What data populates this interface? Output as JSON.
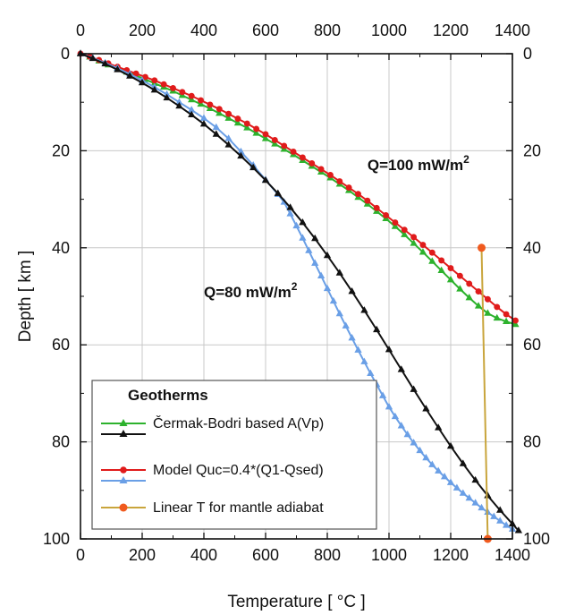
{
  "chart_data": {
    "type": "line",
    "xlabel": "Temperature  [ °C ]",
    "ylabel": "Depth  [ km ]",
    "xlim": [
      0,
      1400
    ],
    "ylim": [
      0,
      100
    ],
    "y_inverted": true,
    "x_ticks": [
      "0",
      "200",
      "400",
      "600",
      "800",
      "1000",
      "1200",
      "1400"
    ],
    "y_ticks": [
      "0",
      "20",
      "40",
      "60",
      "80",
      "100"
    ],
    "grid": true,
    "legend_title": "Geotherms",
    "legend_position": "bottom-left",
    "annotations": [
      {
        "text": "Q=100 mW/m",
        "sup": "2",
        "x": 930,
        "y": 24
      },
      {
        "text": "Q=80 mW/m",
        "sup": "2",
        "x": 400,
        "y": 48
      }
    ],
    "series": [
      {
        "name": "Čermak-Bodri based A(Vp)",
        "color": "#2db22d",
        "marker": "triangle",
        "x": [
          0,
          30,
          60,
          90,
          120,
          150,
          180,
          210,
          240,
          270,
          300,
          330,
          360,
          390,
          420,
          450,
          480,
          510,
          540,
          570,
          600,
          630,
          660,
          690,
          720,
          750,
          780,
          810,
          840,
          870,
          900,
          930,
          960,
          990,
          1020,
          1050,
          1080,
          1110,
          1140,
          1170,
          1200,
          1230,
          1260,
          1290,
          1320,
          1350,
          1380,
          1410
        ],
        "y": [
          0,
          0.7,
          1.5,
          2.3,
          3.0,
          3.8,
          4.5,
          5.3,
          6.1,
          6.9,
          7.7,
          8.6,
          9.5,
          10.4,
          11.3,
          12.3,
          13.3,
          14.3,
          15.3,
          16.4,
          17.5,
          18.6,
          19.7,
          20.8,
          22.0,
          23.2,
          24.4,
          25.6,
          26.9,
          28.2,
          29.6,
          31.0,
          32.5,
          34.0,
          35.6,
          37.3,
          39.1,
          40.9,
          42.8,
          44.7,
          46.6,
          48.5,
          50.3,
          52.0,
          53.5,
          54.5,
          55.2,
          55.8
        ]
      },
      {
        "name": "Model Quc=0.4*(Q1-Qsed)",
        "color": "#e01b1b",
        "marker": "circle",
        "x": [
          0,
          30,
          60,
          90,
          120,
          150,
          180,
          210,
          240,
          270,
          300,
          330,
          360,
          390,
          420,
          450,
          480,
          510,
          540,
          570,
          600,
          630,
          660,
          690,
          720,
          750,
          780,
          810,
          840,
          870,
          900,
          930,
          960,
          990,
          1020,
          1050,
          1080,
          1110,
          1140,
          1170,
          1200,
          1230,
          1260,
          1290,
          1320,
          1350,
          1380,
          1410
        ],
        "y": [
          0,
          0.6,
          1.3,
          2.0,
          2.7,
          3.4,
          4.1,
          4.8,
          5.5,
          6.3,
          7.1,
          7.9,
          8.7,
          9.6,
          10.5,
          11.4,
          12.4,
          13.4,
          14.4,
          15.5,
          16.6,
          17.8,
          19.0,
          20.2,
          21.4,
          22.6,
          23.8,
          25.0,
          26.3,
          27.6,
          28.9,
          30.3,
          31.8,
          33.3,
          34.8,
          36.3,
          37.8,
          39.4,
          41.0,
          42.6,
          44.2,
          45.8,
          47.4,
          49.0,
          50.6,
          52.2,
          53.7,
          55.0
        ]
      },
      {
        "name": "Model Quc=0.4*(Q1-Qsed)",
        "color": "#6a9fe6",
        "marker": "triangle",
        "x": [
          0,
          40,
          80,
          120,
          160,
          200,
          240,
          280,
          320,
          360,
          400,
          440,
          480,
          520,
          560,
          600,
          640,
          660,
          680,
          700,
          720,
          740,
          760,
          780,
          800,
          820,
          840,
          860,
          880,
          900,
          920,
          940,
          960,
          980,
          1000,
          1020,
          1040,
          1060,
          1080,
          1100,
          1120,
          1140,
          1160,
          1180,
          1200,
          1220,
          1240,
          1260,
          1280,
          1300,
          1320,
          1340,
          1360,
          1380,
          1400
        ],
        "y": [
          0,
          0.9,
          1.9,
          3.0,
          4.2,
          5.5,
          6.9,
          8.4,
          10.0,
          11.6,
          13.3,
          15.2,
          17.5,
          20.2,
          23.0,
          26.0,
          29.0,
          30.6,
          33.0,
          35.5,
          38.0,
          40.6,
          43.2,
          45.8,
          48.4,
          51.0,
          53.6,
          56.1,
          58.6,
          61.1,
          63.5,
          65.9,
          68.2,
          70.5,
          72.8,
          74.8,
          76.7,
          78.5,
          80.2,
          81.8,
          83.3,
          84.7,
          86.0,
          87.2,
          88.4,
          89.5,
          90.6,
          91.6,
          92.6,
          93.6,
          94.5,
          95.4,
          96.3,
          97.2,
          98.0
        ]
      },
      {
        "name": "Čermak-Bodri based A(Vp)",
        "color": "#111111",
        "marker": "triangle",
        "x": [
          0,
          40,
          80,
          120,
          160,
          200,
          240,
          280,
          320,
          360,
          400,
          440,
          480,
          520,
          560,
          600,
          640,
          680,
          720,
          760,
          800,
          840,
          880,
          920,
          960,
          1000,
          1040,
          1080,
          1120,
          1160,
          1200,
          1240,
          1280,
          1320,
          1360,
          1400,
          1420
        ],
        "y": [
          0,
          1.0,
          2.1,
          3.3,
          4.6,
          6.0,
          7.5,
          9.1,
          10.8,
          12.6,
          14.5,
          16.6,
          18.8,
          21.1,
          23.5,
          26.1,
          28.8,
          31.7,
          34.8,
          38.1,
          41.6,
          45.2,
          49.0,
          52.9,
          56.9,
          61.0,
          65.1,
          69.2,
          73.2,
          77.1,
          80.9,
          84.5,
          87.9,
          91.1,
          94.1,
          96.9,
          98.3
        ]
      },
      {
        "name": "Linear T for mantle adiabat",
        "color": "#c9a53c",
        "marker_color": "#f05a1e",
        "marker": "circle",
        "x": [
          1300,
          1320
        ],
        "y": [
          40,
          100
        ]
      }
    ],
    "legend_entries": [
      {
        "label": "Čermak-Bodri based A(Vp)",
        "line": "#2db22d",
        "marker": "triangle",
        "marker_color": "#2db22d",
        "line2": "#111111",
        "marker2_color": "#111111"
      },
      {
        "label": "Model Quc=0.4*(Q1-Qsed)",
        "line": "#e01b1b",
        "marker": "circle",
        "marker_color": "#e01b1b",
        "line2": "#6a9fe6",
        "marker2_color": "#6a9fe6"
      },
      {
        "label": "Linear T for mantle adiabat",
        "line": "#c9a53c",
        "marker": "circle",
        "marker_color": "#f05a1e"
      }
    ]
  }
}
